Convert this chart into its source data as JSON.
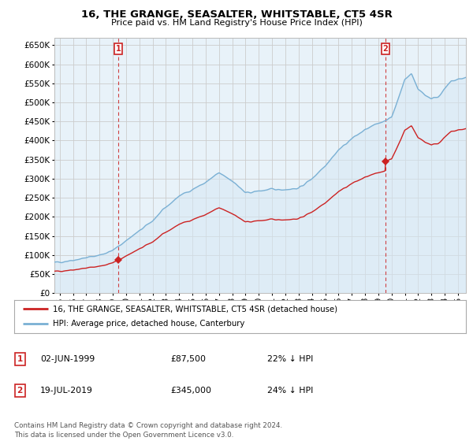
{
  "title": "16, THE GRANGE, SEASALTER, WHITSTABLE, CT5 4SR",
  "subtitle": "Price paid vs. HM Land Registry's House Price Index (HPI)",
  "ylim": [
    0,
    670000
  ],
  "yticks": [
    0,
    50000,
    100000,
    150000,
    200000,
    250000,
    300000,
    350000,
    400000,
    450000,
    500000,
    550000,
    600000,
    650000
  ],
  "xlim_start": 1994.6,
  "xlim_end": 2025.6,
  "xtick_years": [
    1995,
    1996,
    1997,
    1998,
    1999,
    2000,
    2001,
    2002,
    2003,
    2004,
    2005,
    2006,
    2007,
    2008,
    2009,
    2010,
    2011,
    2012,
    2013,
    2014,
    2015,
    2016,
    2017,
    2018,
    2019,
    2020,
    2021,
    2022,
    2023,
    2024,
    2025
  ],
  "hpi_color": "#7ab0d4",
  "hpi_fill_color": "#d6e8f5",
  "sale_color": "#cc2222",
  "dashed_color": "#cc2222",
  "grid_color": "#cccccc",
  "bg_color": "#ffffff",
  "plot_bg_color": "#e8f2f9",
  "sale1_x": 1999.42,
  "sale1_y": 87500,
  "sale1_label": "1",
  "sale2_x": 2019.54,
  "sale2_y": 345000,
  "sale2_label": "2",
  "legend_sale_label": "16, THE GRANGE, SEASALTER, WHITSTABLE, CT5 4SR (detached house)",
  "legend_hpi_label": "HPI: Average price, detached house, Canterbury",
  "note1_label": "1",
  "note1_date": "02-JUN-1999",
  "note1_price": "£87,500",
  "note1_hpi": "22% ↓ HPI",
  "note2_label": "2",
  "note2_date": "19-JUL-2019",
  "note2_price": "£345,000",
  "note2_hpi": "24% ↓ HPI",
  "footer": "Contains HM Land Registry data © Crown copyright and database right 2024.\nThis data is licensed under the Open Government Licence v3.0."
}
